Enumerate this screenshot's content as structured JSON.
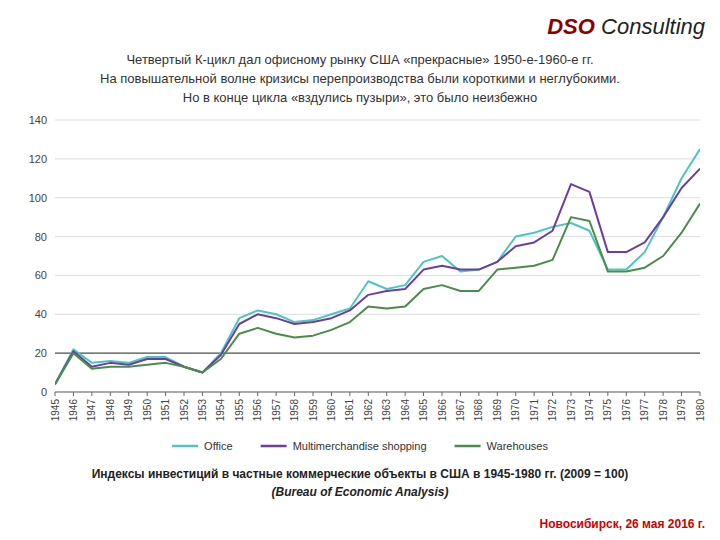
{
  "chart_data": {
    "type": "line",
    "title": [
      "Четвертый К-цикл дал офисному рынку США «прекрасные» 1950-е-1960-е гг.",
      "На повышательной волне кризисы перепроизводства были короткими и неглубокими.",
      "Но в конце цикла «вздулись пузыри», это было неизбежно"
    ],
    "x": [
      1945,
      1946,
      1947,
      1948,
      1949,
      1950,
      1951,
      1952,
      1953,
      1954,
      1955,
      1956,
      1957,
      1958,
      1959,
      1960,
      1961,
      1962,
      1963,
      1964,
      1965,
      1966,
      1967,
      1968,
      1969,
      1970,
      1971,
      1972,
      1973,
      1974,
      1975,
      1976,
      1977,
      1978,
      1979,
      1980
    ],
    "series": [
      {
        "name": "Office",
        "color": "#4EC5C1",
        "values": [
          4,
          22,
          15,
          16,
          15,
          18,
          18,
          13,
          10,
          20,
          38,
          42,
          40,
          36,
          37,
          40,
          43,
          57,
          53,
          55,
          67,
          70,
          62,
          63,
          67,
          80,
          82,
          85,
          87,
          83,
          63,
          63,
          72,
          90,
          110,
          125
        ]
      },
      {
        "name": "Multimerchandise shopping",
        "color": "#6B3FA0",
        "values": [
          4,
          21,
          13,
          15,
          14,
          17,
          17,
          13,
          10,
          19,
          35,
          40,
          38,
          35,
          36,
          38,
          42,
          50,
          52,
          53,
          63,
          65,
          63,
          63,
          67,
          75,
          77,
          83,
          107,
          103,
          72,
          72,
          77,
          90,
          105,
          115
        ]
      },
      {
        "name": "Warehouses",
        "color": "#4A8C4A",
        "values": [
          4,
          20,
          12,
          13,
          13,
          14,
          15,
          13,
          10,
          17,
          30,
          33,
          30,
          28,
          29,
          32,
          36,
          44,
          43,
          44,
          53,
          55,
          52,
          52,
          63,
          64,
          65,
          68,
          90,
          88,
          62,
          62,
          64,
          70,
          82,
          97
        ]
      }
    ],
    "xlim": [
      1945,
      1980
    ],
    "xticks": [
      1945,
      1946,
      1947,
      1948,
      1949,
      1950,
      1951,
      1952,
      1953,
      1954,
      1955,
      1956,
      1957,
      1958,
      1959,
      1960,
      1961,
      1962,
      1963,
      1964,
      1965,
      1966,
      1967,
      1968,
      1969,
      1970,
      1971,
      1972,
      1973,
      1974,
      1975,
      1976,
      1977,
      1978,
      1979,
      1980
    ],
    "ylim": [
      0,
      140
    ],
    "yticks": [
      0,
      20,
      40,
      60,
      80,
      100,
      120,
      140
    ],
    "grid": true,
    "legend": "bottom",
    "annotations": [
      {
        "text": "DSO",
        "color": "#8B0000"
      },
      {
        "text": " Consulting"
      },
      {
        "text": "Индексы инвестиций в частные коммерческие объекты в США в 1945-1980 гг. (2009 = 100)"
      },
      {
        "text": "(Bureau of Economic Analysis)"
      },
      {
        "text": "Новосибирск, 26 мая 2016 г.",
        "color": "#CC0000"
      },
      {
        "y": 20
      }
    ]
  }
}
